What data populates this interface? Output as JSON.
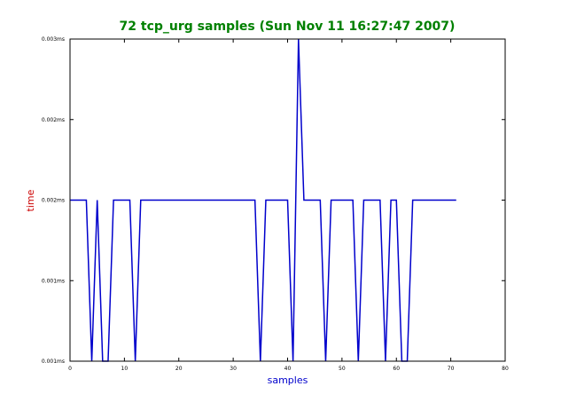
{
  "chart_data": {
    "type": "line",
    "title": "72 tcp_urg samples (Sun Nov 11 16:27:47 2007)",
    "xlabel": "samples",
    "ylabel": "time",
    "xlim": [
      0,
      80
    ],
    "ylim": [
      0.001,
      0.003
    ],
    "x_ticks": [
      0,
      10,
      20,
      30,
      40,
      50,
      60,
      70,
      80
    ],
    "x_tick_labels": [
      "0",
      "10",
      "20",
      "30",
      "40",
      "50",
      "60",
      "70",
      "80"
    ],
    "y_ticks": [
      0.001,
      0.0015,
      0.002,
      0.0025,
      0.003
    ],
    "y_tick_labels": [
      "0.001ms",
      "0.001ms",
      "0.002ms",
      "0.002ms",
      "0.003ms"
    ],
    "grid": false,
    "series": [
      {
        "color": "#0000cc",
        "x": [
          0,
          1,
          2,
          3,
          4,
          5,
          6,
          7,
          8,
          9,
          10,
          11,
          12,
          13,
          14,
          15,
          16,
          17,
          18,
          19,
          20,
          21,
          22,
          23,
          24,
          25,
          26,
          27,
          28,
          29,
          30,
          31,
          32,
          33,
          34,
          35,
          36,
          37,
          38,
          39,
          40,
          41,
          42,
          43,
          44,
          45,
          46,
          47,
          48,
          49,
          50,
          51,
          52,
          53,
          54,
          55,
          56,
          57,
          58,
          59,
          60,
          61,
          62,
          63,
          64,
          65,
          66,
          67,
          68,
          69,
          70,
          71
        ],
        "y": [
          0.002,
          0.002,
          0.002,
          0.002,
          0.001,
          0.002,
          0.001,
          0.001,
          0.002,
          0.002,
          0.002,
          0.002,
          0.001,
          0.002,
          0.002,
          0.002,
          0.002,
          0.002,
          0.002,
          0.002,
          0.002,
          0.002,
          0.002,
          0.002,
          0.002,
          0.002,
          0.002,
          0.002,
          0.002,
          0.002,
          0.002,
          0.002,
          0.002,
          0.002,
          0.002,
          0.001,
          0.002,
          0.002,
          0.002,
          0.002,
          0.002,
          0.001,
          0.003,
          0.002,
          0.002,
          0.002,
          0.002,
          0.001,
          0.002,
          0.002,
          0.002,
          0.002,
          0.002,
          0.001,
          0.002,
          0.002,
          0.002,
          0.002,
          0.001,
          0.002,
          0.002,
          0.001,
          0.001,
          0.002,
          0.002,
          0.002,
          0.002,
          0.002,
          0.002,
          0.002,
          0.002,
          0.002
        ]
      }
    ]
  }
}
